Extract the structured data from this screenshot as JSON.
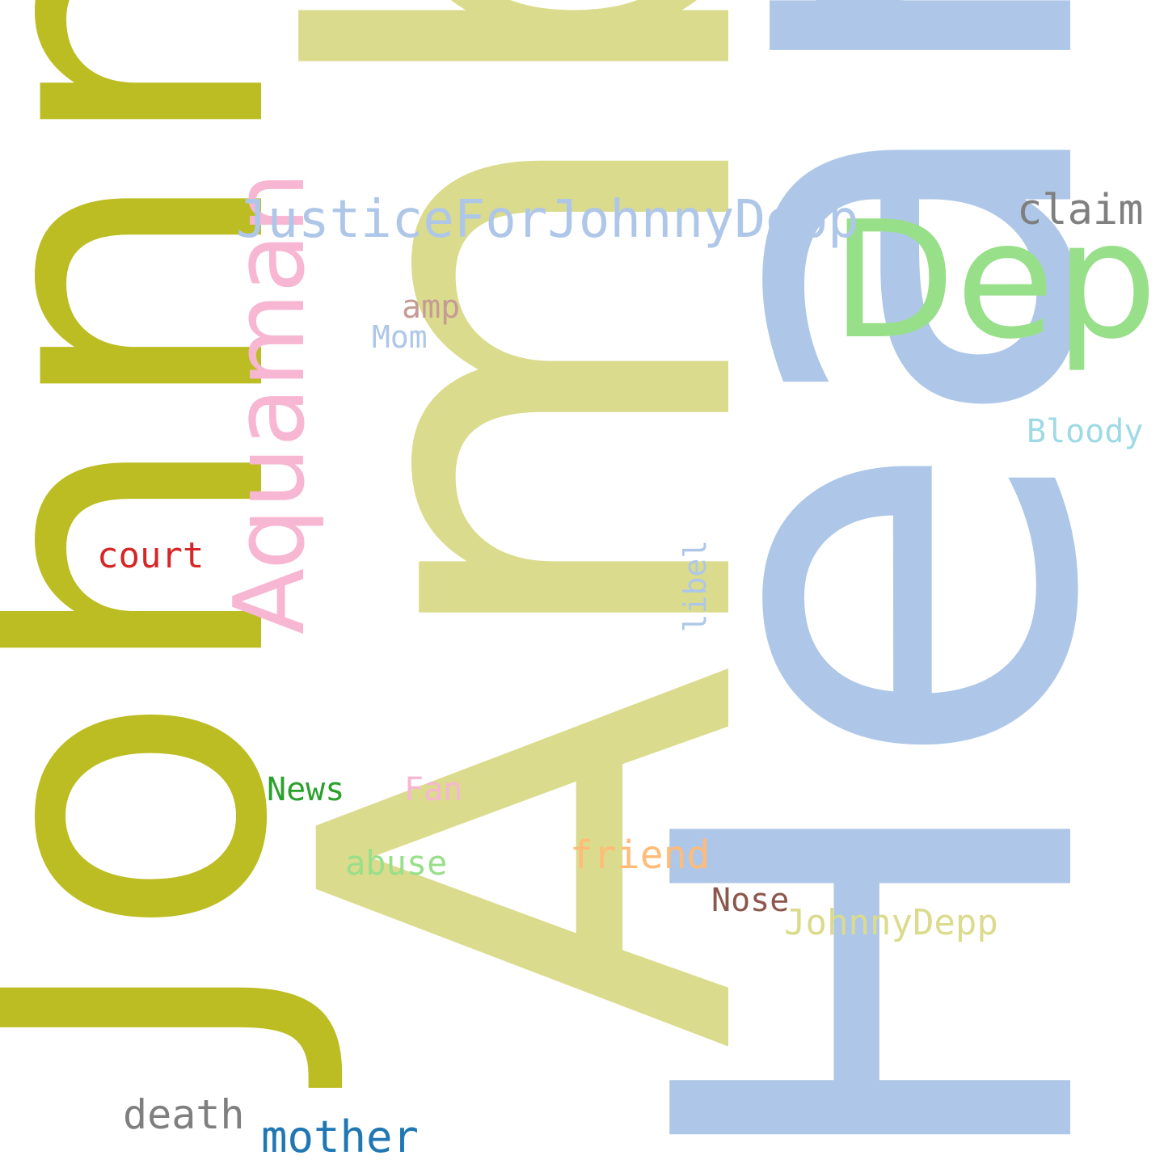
{
  "wordcloud": {
    "words": {
      "johnny": {
        "text": "Johnny",
        "color": "#bcbd22"
      },
      "amber": {
        "text": "Amber",
        "color": "#dbdb8d"
      },
      "heard": {
        "text": "Heard",
        "color": "#aec7e8"
      },
      "depp": {
        "text": "Depp",
        "color": "#98df8a"
      },
      "justice": {
        "text": "JusticeForJohnnyDepp",
        "color": "#aec7e8"
      },
      "aquaman": {
        "text": "Aquaman",
        "color": "#f7b6d2"
      },
      "claim": {
        "text": "claim",
        "color": "#7f7f7f"
      },
      "amp": {
        "text": "amp",
        "color": "#c49c94"
      },
      "mom": {
        "text": "Mom",
        "color": "#aec7e8"
      },
      "bloody": {
        "text": "Bloody",
        "color": "#9edae5"
      },
      "court": {
        "text": "court",
        "color": "#d62728"
      },
      "libel": {
        "text": "libel",
        "color": "#aec7e8"
      },
      "news": {
        "text": "News",
        "color": "#2ca02c"
      },
      "fan": {
        "text": "Fan",
        "color": "#f7b6d2"
      },
      "abuse": {
        "text": "abuse",
        "color": "#98df8a"
      },
      "friend": {
        "text": "friend",
        "color": "#ffbb78"
      },
      "nose": {
        "text": "Nose",
        "color": "#8c564b"
      },
      "jdepp2": {
        "text": "JohnnyDepp",
        "color": "#dbdb8d"
      },
      "death": {
        "text": "death",
        "color": "#7f7f7f"
      },
      "mother": {
        "text": "mother",
        "color": "#1f77b4"
      }
    }
  }
}
